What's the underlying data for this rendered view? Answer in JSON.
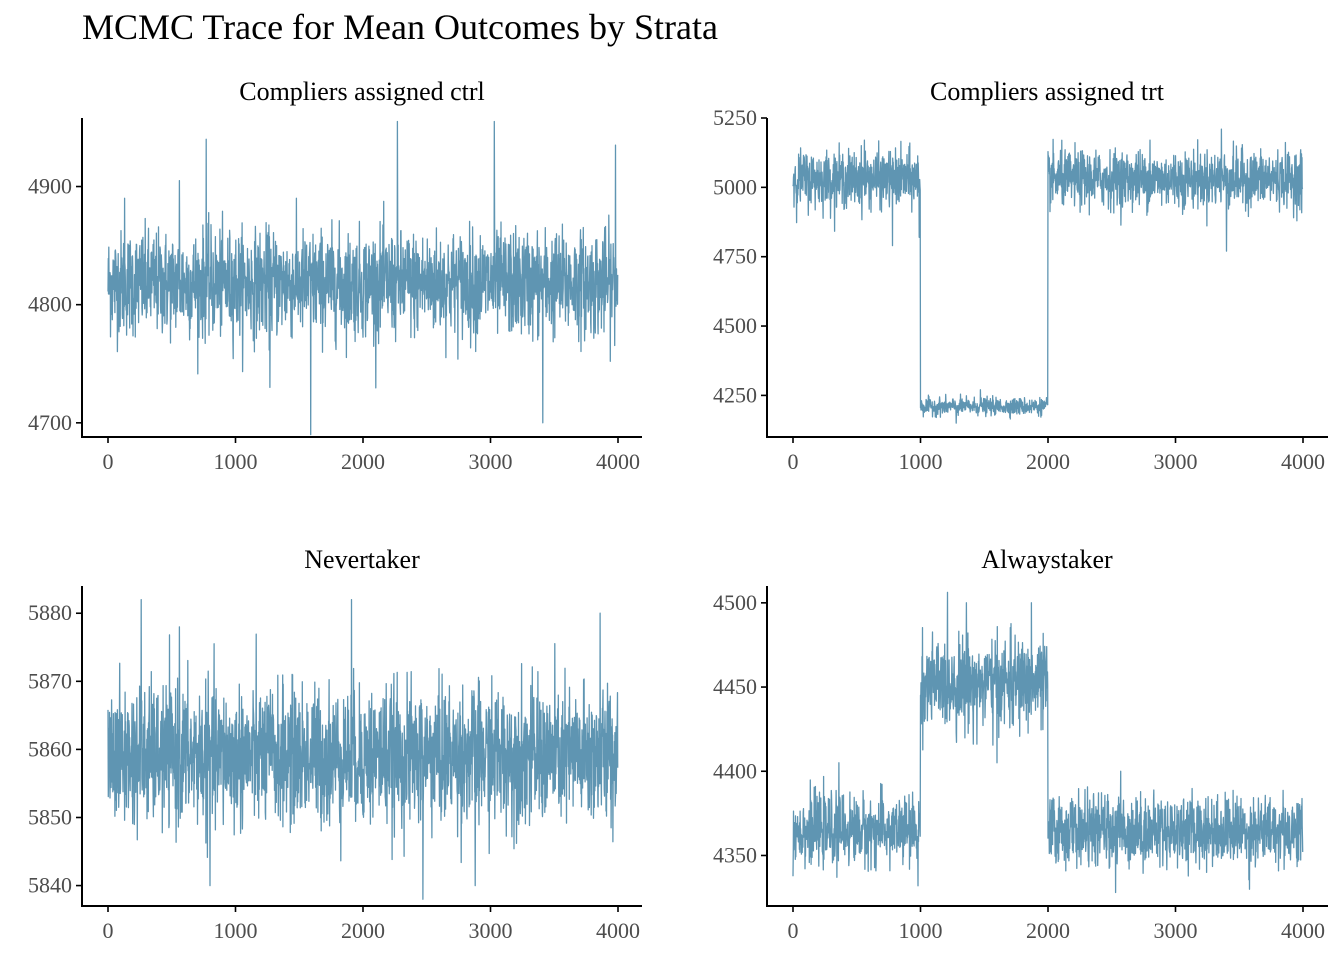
{
  "title": "MCMC Trace for Mean Outcomes by Strata",
  "colors": {
    "trace": "#5f95b2",
    "axis": "#000000",
    "tick_label": "#4d4d4d"
  },
  "chart_data": [
    {
      "type": "line",
      "panel": "top-left",
      "title": "Compliers assigned ctrl",
      "xlabel": "",
      "ylabel": "",
      "xlim": [
        0,
        4000
      ],
      "ylim": [
        4688,
        4958
      ],
      "xticks": [
        "0",
        "1000",
        "2000",
        "3000",
        "4000"
      ],
      "yticks": [
        "4700",
        "4800",
        "4900"
      ],
      "series": [
        {
          "segments": [
            {
              "from": 0,
              "to": 4000,
              "mean": 4818,
              "spread": 22,
              "spikes": [
                [
                  130,
                  4890
                ],
                [
                  770,
                  4940
                ],
                [
                  1590,
                  4690
                ],
                [
                  2270,
                  4955
                ],
                [
                  3030,
                  4955
                ],
                [
                  3410,
                  4700
                ],
                [
                  3980,
                  4935
                ],
                [
                  1270,
                  4730
                ],
                [
                  560,
                  4905
                ]
              ]
            }
          ]
        }
      ]
    },
    {
      "type": "line",
      "panel": "top-right",
      "title": "Compliers assigned trt",
      "xlabel": "",
      "ylabel": "",
      "xlim": [
        0,
        4000
      ],
      "ylim": [
        4100,
        5250
      ],
      "xticks": [
        "0",
        "1000",
        "2000",
        "3000",
        "4000"
      ],
      "yticks": [
        "4250",
        "4500",
        "4750",
        "5000",
        "5250"
      ],
      "series": [
        {
          "segments": [
            {
              "from": 0,
              "to": 1000,
              "mean": 5030,
              "spread": 50,
              "spikes": [
                [
                  560,
                  5170
                ],
                [
                  780,
                  4790
                ],
                [
                  990,
                  4820
                ]
              ]
            },
            {
              "from": 1000,
              "to": 2000,
              "mean": 4210,
              "spread": 15,
              "spikes": [
                [
                  1470,
                  4270
                ],
                [
                  1280,
                  4150
                ]
              ]
            },
            {
              "from": 2000,
              "to": 4000,
              "mean": 5030,
              "spread": 50,
              "spikes": [
                [
                  3400,
                  4770
                ],
                [
                  3360,
                  5210
                ],
                [
                  2800,
                  5170
                ]
              ]
            }
          ]
        }
      ]
    },
    {
      "type": "line",
      "panel": "bottom-left",
      "title": "Nevertaker",
      "xlabel": "",
      "ylabel": "",
      "xlim": [
        0,
        4000
      ],
      "ylim": [
        5837,
        5884
      ],
      "xticks": [
        "0",
        "1000",
        "2000",
        "3000",
        "4000"
      ],
      "yticks": [
        "5840",
        "5850",
        "5860",
        "5870",
        "5880"
      ],
      "series": [
        {
          "segments": [
            {
              "from": 0,
              "to": 4000,
              "mean": 5859,
              "spread": 5,
              "spikes": [
                [
                  260,
                  5882
                ],
                [
                  1910,
                  5882
                ],
                [
                  3860,
                  5880
                ],
                [
                  2470,
                  5838
                ],
                [
                  2880,
                  5840
                ],
                [
                  800,
                  5840
                ],
                [
                  560,
                  5878
                ]
              ]
            }
          ]
        }
      ]
    },
    {
      "type": "line",
      "panel": "bottom-right",
      "title": "Alwaystaker",
      "xlabel": "",
      "ylabel": "",
      "xlim": [
        0,
        4000
      ],
      "ylim": [
        4320,
        4510
      ],
      "xticks": [
        "0",
        "1000",
        "2000",
        "3000",
        "4000"
      ],
      "yticks": [
        "4350",
        "4400",
        "4450",
        "4500"
      ],
      "series": [
        {
          "segments": [
            {
              "from": 0,
              "to": 1000,
              "mean": 4365,
              "spread": 10,
              "spikes": [
                [
                  360,
                  4405
                ],
                [
                  980,
                  4332
                ]
              ]
            },
            {
              "from": 1000,
              "to": 2000,
              "mean": 4452,
              "spread": 13,
              "spikes": [
                [
                  1360,
                  4500
                ],
                [
                  1870,
                  4500
                ],
                [
                  1600,
                  4405
                ]
              ]
            },
            {
              "from": 2000,
              "to": 4000,
              "mean": 4365,
              "spread": 10,
              "spikes": [
                [
                  2530,
                  4328
                ],
                [
                  2570,
                  4400
                ],
                [
                  3580,
                  4330
                ]
              ]
            }
          ]
        }
      ]
    }
  ]
}
